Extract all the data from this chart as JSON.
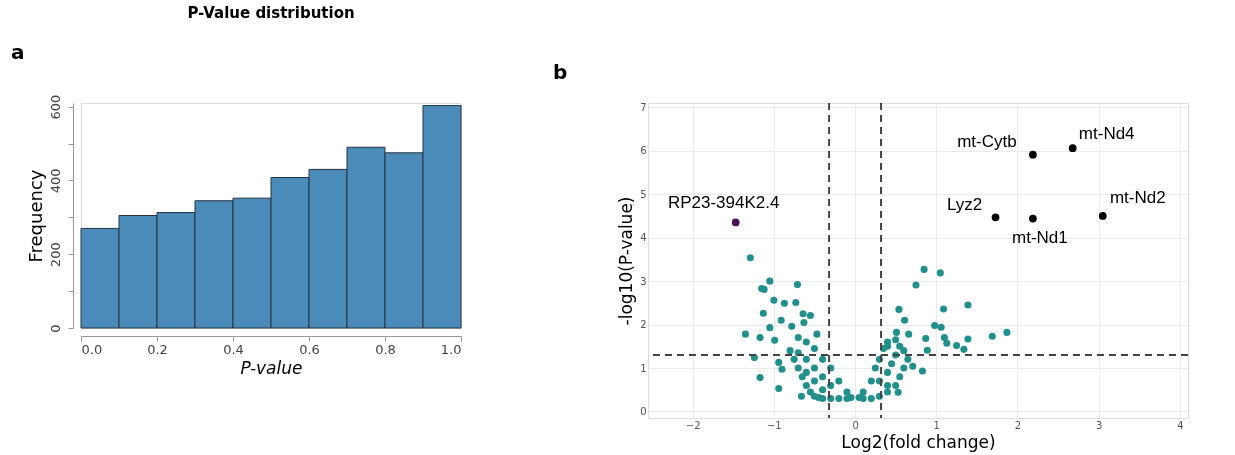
{
  "chart_data": [
    {
      "type": "histogram",
      "title": "P-Value distribution",
      "xlabel": "P-value",
      "ylabel": "Frequency",
      "annotations": [
        "a"
      ],
      "bins": [
        0,
        0.1,
        0.2,
        0.3,
        0.4,
        0.5,
        0.6,
        0.7,
        0.8,
        0.9,
        1.0
      ],
      "values": [
        270,
        305,
        313,
        345,
        352,
        408,
        430,
        490,
        475,
        603
      ],
      "color": "#4a8bb9",
      "xlim": [
        0,
        1
      ],
      "xticks": [
        {
          "value": 0,
          "label": "0.0"
        },
        {
          "value": 0.2,
          "label": "0.2"
        },
        {
          "value": 0.4,
          "label": "0.4"
        },
        {
          "value": 0.6,
          "label": "0.6"
        },
        {
          "value": 0.8,
          "label": "0.8"
        },
        {
          "value": 1,
          "label": "1.0"
        }
      ],
      "ylim": [
        0,
        610
      ],
      "yticks": [
        0,
        {
          "value": 100,
          "label": null
        },
        200,
        {
          "value": 300,
          "label": null
        },
        400,
        {
          "value": 500,
          "label": null
        },
        600
      ]
    },
    {
      "type": "scatter",
      "xlabel": "Log2(fold change)",
      "ylabel": "-log10(P-value)",
      "marker": "circle",
      "grid": true,
      "xlim": [
        -2.55,
        4.1
      ],
      "xticks": [
        -2,
        -1,
        0,
        1,
        2,
        3,
        4
      ],
      "ylim": [
        -0.15,
        7.1
      ],
      "yticks": [
        0,
        1,
        2,
        3,
        4,
        5,
        6,
        7
      ],
      "series": [
        {
          "color": "#21908c",
          "x": [
            -1.29,
            -1.15,
            -1.12,
            -1.05,
            -0.71,
            -1.0,
            -0.87,
            -0.73,
            -0.64,
            -0.55,
            -1.13,
            -0.91,
            -1.05,
            -1.35,
            -1.17,
            -0.99,
            -1.24,
            -1.17,
            -0.94,
            -0.94,
            -0.9,
            -0.78,
            -0.63,
            -0.47,
            -0.66,
            0.85,
            1.05,
            0.75,
            1.09,
            1.39,
            0.54,
            0.61,
            0.98,
            1.06,
            0.87,
            1.1,
            1.13,
            1.25,
            1.34,
            1.39,
            1.69,
            1.87,
            0.89,
            0.83,
            0.66,
            0.51,
            0.71,
            0.53,
            0.4,
            -0.8,
            -0.75,
            -0.7,
            -0.65,
            -0.6,
            -0.55,
            -0.5,
            -0.45,
            -0.4,
            -0.3,
            -0.2,
            -0.1,
            -0.05,
            -0.7,
            -0.6,
            -0.5,
            -0.4,
            -0.3,
            -0.2,
            -0.1,
            -0.6,
            -0.5,
            -0.4,
            -0.3,
            -0.5,
            -0.4,
            -0.6,
            -0.7,
            0.05,
            0.1,
            0.2,
            0.3,
            0.4,
            0.5,
            0.55,
            0.6,
            0.65,
            0.1,
            0.2,
            0.25,
            0.3,
            0.35,
            0.4,
            0.5,
            0.3,
            0.4,
            0.45,
            0.5,
            0.55,
            0.4,
            0.6
          ],
          "values": [
            3.54,
            2.83,
            2.81,
            3.0,
            2.92,
            2.56,
            2.49,
            2.51,
            2.25,
            2.21,
            2.26,
            2.1,
            1.93,
            1.78,
            1.7,
            1.64,
            1.24,
            0.78,
            0.53,
            1.13,
            0.97,
            1.96,
            2.05,
            1.78,
            0.35,
            3.27,
            3.19,
            2.91,
            2.36,
            2.45,
            2.35,
            2.1,
            1.98,
            1.94,
            1.68,
            1.7,
            1.57,
            1.52,
            1.43,
            1.67,
            1.73,
            1.82,
            1.41,
            0.93,
            1.78,
            1.82,
            1.04,
            0.44,
            1.5,
            1.4,
            1.2,
            1.0,
            0.8,
            0.6,
            0.45,
            0.35,
            0.32,
            0.3,
            0.3,
            0.3,
            0.3,
            0.32,
            1.7,
            1.6,
            1.45,
            1.2,
            1.0,
            0.7,
            0.45,
            1.2,
            1.0,
            0.8,
            0.6,
            0.7,
            0.5,
            0.9,
            1.35,
            0.32,
            0.3,
            0.3,
            0.35,
            0.45,
            0.6,
            0.8,
            1.0,
            1.2,
            0.45,
            0.7,
            1.0,
            1.2,
            1.45,
            1.6,
            1.65,
            0.7,
            0.9,
            1.1,
            1.3,
            1.5,
            0.6,
            1.4
          ]
        },
        {
          "color": "#4b0f5c",
          "x": [
            -1.47
          ],
          "values": [
            4.35
          ]
        },
        {
          "color": "#000000",
          "x": [
            2.19,
            2.68,
            1.73,
            2.19,
            3.05
          ],
          "values": [
            5.91,
            6.06,
            4.47,
            4.44,
            4.5
          ]
        }
      ],
      "ref_lines": [
        {
          "axis": "x",
          "value": -0.32,
          "color": "#444444",
          "line_style": "dashed"
        },
        {
          "axis": "x",
          "value": 0.32,
          "color": "#444444",
          "line_style": "dashed"
        },
        {
          "axis": "y",
          "value": 1.3,
          "color": "#444444",
          "line_style": "dashed"
        }
      ],
      "annotations": [
        "b",
        {
          "text": "RP23-394K2.4",
          "x": -1.47,
          "y": 4.35
        },
        {
          "text": "mt-Cytb",
          "x": 2.19,
          "y": 5.91
        },
        {
          "text": "mt-Nd4",
          "x": 2.68,
          "y": 6.06
        },
        {
          "text": "Lyz2",
          "x": 1.73,
          "y": 4.47
        },
        {
          "text": "mt-Nd1",
          "x": 2.19,
          "y": 4.44
        },
        {
          "text": "mt-Nd2",
          "x": 3.05,
          "y": 4.5
        }
      ]
    }
  ]
}
